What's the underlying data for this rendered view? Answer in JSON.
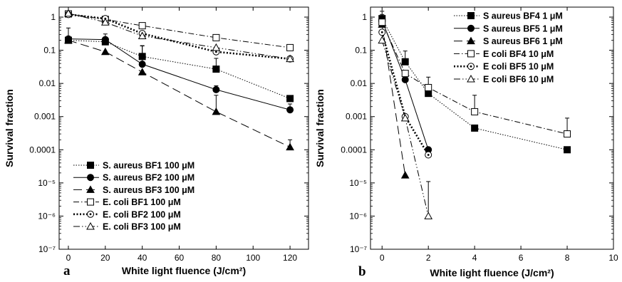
{
  "chart_data": [
    {
      "type": "line",
      "panel_label": "a",
      "xlabel": "White light fluence (J/cm²)",
      "ylabel": "Survival fraction",
      "yscale": "log",
      "xlim": [
        -5,
        130
      ],
      "ylim": [
        1e-07,
        2
      ],
      "x_ticks": [
        0,
        20,
        40,
        60,
        80,
        100,
        120
      ],
      "y_ticks": [
        {
          "value": 1,
          "label": "1"
        },
        {
          "value": 0.1,
          "label": "0.1"
        },
        {
          "value": 0.01,
          "label": "0.01"
        },
        {
          "value": 0.001,
          "label": "0.001"
        },
        {
          "value": 0.0001,
          "label": "0.0001"
        },
        {
          "value": 1e-05,
          "label": "10⁻⁵"
        },
        {
          "value": 1e-06,
          "label": "10⁻⁶"
        },
        {
          "value": 1e-07,
          "label": "10⁻⁷"
        }
      ],
      "legend_position": "bottom-left",
      "series": [
        {
          "name": "S. aureus BF1 100 μM",
          "marker": "square",
          "filled": true,
          "dash": "dotted",
          "x": [
            0,
            20,
            40,
            80,
            120
          ],
          "y": [
            0.2,
            0.18,
            0.065,
            0.027,
            0.0035
          ],
          "err": [
            0,
            0.05,
            0.07,
            0.03,
            0.0008
          ]
        },
        {
          "name": "S. aureus BF2 100 μM",
          "marker": "circle",
          "filled": true,
          "dash": "solid",
          "x": [
            0,
            20,
            40,
            80,
            120
          ],
          "y": [
            0.22,
            0.21,
            0.038,
            0.0065,
            0.0016
          ],
          "err": [
            0.25,
            0.1,
            0.1,
            0.002,
            0.0008
          ]
        },
        {
          "name": "S. aureus BF3 100 μM",
          "marker": "triangle",
          "filled": true,
          "dash": "longdash",
          "x": [
            0,
            20,
            40,
            80,
            120
          ],
          "y": [
            0.2,
            0.09,
            0.022,
            0.0014,
            0.00012
          ],
          "err": [
            0,
            0,
            0,
            0.003,
            8e-05
          ]
        },
        {
          "name": "E. coli BF1 100 μM",
          "marker": "square",
          "filled": false,
          "dash": "dashdot",
          "x": [
            0,
            20,
            40,
            80,
            120
          ],
          "y": [
            1.25,
            0.85,
            0.55,
            0.24,
            0.12
          ],
          "err": [
            0,
            0,
            0,
            0,
            0
          ]
        },
        {
          "name": "E. coli BF2 100 μM",
          "marker": "circle_dot",
          "filled": false,
          "dash": "thickdot",
          "x": [
            0,
            20,
            40,
            80,
            120
          ],
          "y": [
            1.2,
            0.9,
            0.32,
            0.09,
            0.055
          ],
          "err": [
            0,
            0,
            0,
            0,
            0
          ]
        },
        {
          "name": "E. coli BF3 100 μM",
          "marker": "triangle",
          "filled": false,
          "dash": "dashdotdot",
          "x": [
            0,
            20,
            40,
            80,
            120
          ],
          "y": [
            1.3,
            0.7,
            0.27,
            0.12,
            0.055
          ],
          "err": [
            0,
            0,
            0,
            0,
            0
          ]
        }
      ]
    },
    {
      "type": "line",
      "panel_label": "b",
      "xlabel": "White light fluence (J/cm²)",
      "ylabel": "Survival fraction",
      "yscale": "log",
      "xlim": [
        -0.5,
        10
      ],
      "ylim": [
        1e-07,
        2
      ],
      "x_ticks": [
        0,
        2,
        4,
        6,
        8,
        10
      ],
      "y_ticks": [
        {
          "value": 1,
          "label": "1"
        },
        {
          "value": 0.1,
          "label": "0.1"
        },
        {
          "value": 0.01,
          "label": "0.01"
        },
        {
          "value": 0.001,
          "label": "0.001"
        },
        {
          "value": 0.0001,
          "label": "0.0001"
        },
        {
          "value": 1e-05,
          "label": "10⁻⁵"
        },
        {
          "value": 1e-06,
          "label": "10⁻⁶"
        },
        {
          "value": 1e-07,
          "label": "10⁻⁷"
        }
      ],
      "legend_position": "top-right",
      "series": [
        {
          "name": "S aureus BF4 1 μM",
          "marker": "square",
          "filled": true,
          "dash": "dotted",
          "x": [
            0,
            1,
            2,
            4,
            8
          ],
          "y": [
            0.9,
            0.045,
            0.005,
            0.00045,
            0.0001
          ],
          "err": [
            0.6,
            0.05,
            0,
            0,
            0
          ]
        },
        {
          "name": "S aureus BF5 1 μM",
          "marker": "circle",
          "filled": true,
          "dash": "solid",
          "x": [
            0,
            1,
            2
          ],
          "y": [
            0.8,
            0.013,
            0.0001
          ],
          "err": [
            0.4,
            0,
            0
          ]
        },
        {
          "name": "S aureus BF6 1 μM",
          "marker": "triangle",
          "filled": true,
          "dash": "longdash",
          "x": [
            0,
            1
          ],
          "y": [
            0.6,
            1.7e-05
          ],
          "err": [
            0,
            0
          ]
        },
        {
          "name": "E coli  BF4 10 μM",
          "marker": "square",
          "filled": false,
          "dash": "dashdot",
          "x": [
            0,
            1,
            2,
            4,
            8
          ],
          "y": [
            0.7,
            0.02,
            0.0075,
            0.0014,
            0.0003
          ],
          "err": [
            0,
            0,
            0.008,
            0.003,
            0.0006
          ]
        },
        {
          "name": "E coli  BF5 10 μM",
          "marker": "circle_dot",
          "filled": false,
          "dash": "thickdot",
          "x": [
            0,
            1,
            2
          ],
          "y": [
            0.35,
            0.001,
            7e-05
          ],
          "err": [
            0,
            0,
            0
          ]
        },
        {
          "name": "E coli  BF6 10 μM",
          "marker": "triangle",
          "filled": false,
          "dash": "dashdotdot",
          "x": [
            0,
            1,
            2
          ],
          "y": [
            0.2,
            0.0009,
            1e-06
          ],
          "err": [
            0,
            0,
            1e-05
          ]
        }
      ]
    }
  ]
}
